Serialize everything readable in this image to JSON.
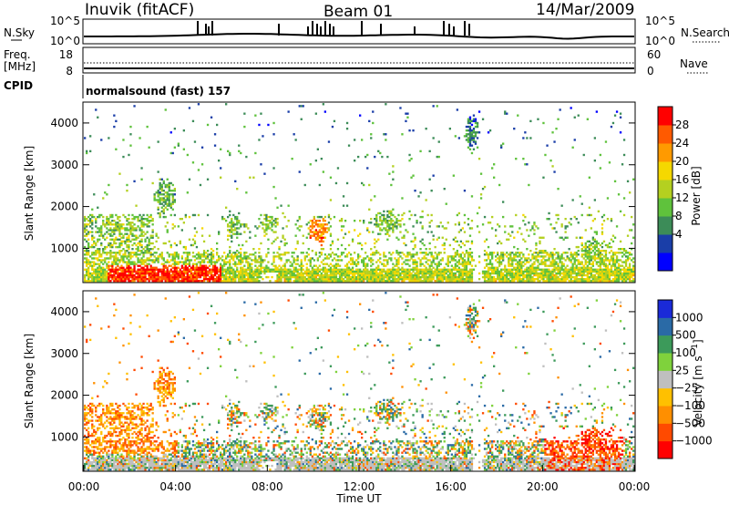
{
  "header": {
    "site": "Inuvik (fitACF)",
    "beam": "Beam 01",
    "date": "14/Mar/2009"
  },
  "status_panel": {
    "nsky_label": "N.Sky",
    "nsearch_label": "N.Search",
    "freq_label_1": "Freq.",
    "freq_label_2": "[MHz]",
    "nave_label": "Nave",
    "cpid_label": "CPID",
    "cpid_value": "normalsound (fast) 157",
    "noise_ticks_left": [
      "10^5",
      "10^0"
    ],
    "noise_ticks_right": [
      "10^5",
      "10^0"
    ],
    "freq_ticks": [
      "18",
      "8"
    ],
    "nave_ticks": [
      "60",
      "0"
    ]
  },
  "colors": {
    "power_scale": [
      "#0000ff",
      "#1a3ea8",
      "#3c8c58",
      "#5fc23c",
      "#b4d020",
      "#f5d800",
      "#ff9a00",
      "#ff5a00",
      "#ff0000"
    ],
    "velocity_scale": [
      "#ff0000",
      "#ff4a00",
      "#ff8f00",
      "#ffc000",
      "#bfbfbf",
      "#7fd23c",
      "#3c9a5a",
      "#2a6aa6",
      "#1a2ad8"
    ]
  },
  "chart_data": [
    {
      "type": "heatmap",
      "name": "power",
      "xlabel": "",
      "ylabel": "Slant Range [km]",
      "colorbar_label": "Power [dB]",
      "colorbar_ticks": [
        "28",
        "24",
        "20",
        "16",
        "12",
        "8",
        "4"
      ],
      "x_range_hours": [
        0,
        24
      ],
      "y_range_km": [
        180,
        4500
      ],
      "y_ticks": [
        "4000",
        "3000",
        "2000",
        "1000"
      ],
      "x_ticks": [
        "00:00",
        "04:00",
        "08:00",
        "12:00",
        "16:00",
        "20:00",
        "00:00"
      ]
    },
    {
      "type": "heatmap",
      "name": "velocity",
      "xlabel": "Time UT",
      "ylabel": "Slant Range [km]",
      "colorbar_label": "Velocity [m s^-1]",
      "colorbar_ticks": [
        "1000",
        "500",
        "100",
        "25",
        "−25",
        "−100",
        "−500",
        "−1000"
      ],
      "x_range_hours": [
        0,
        24
      ],
      "y_range_km": [
        180,
        4500
      ],
      "y_ticks": [
        "4000",
        "3000",
        "2000",
        "1000"
      ],
      "x_ticks": [
        "00:00",
        "04:00",
        "08:00",
        "12:00",
        "16:00",
        "20:00",
        "00:00"
      ]
    }
  ]
}
